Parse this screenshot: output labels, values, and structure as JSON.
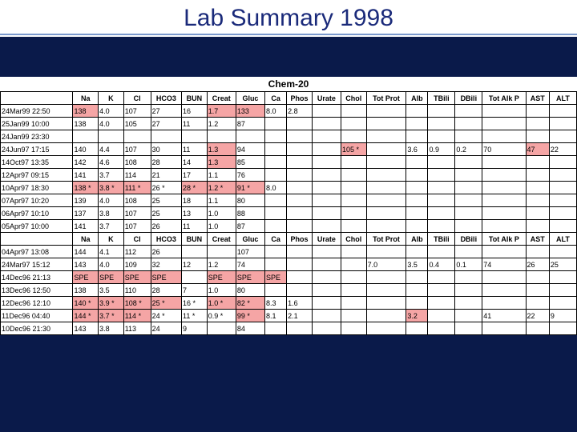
{
  "title": "Lab Summary 1998",
  "panel_label": "Chem-20",
  "columns": [
    "Na",
    "K",
    "Cl",
    "HCO3",
    "BUN",
    "Creat",
    "Gluc",
    "Ca",
    "Phos",
    "Urate",
    "Chol",
    "Tot Prot",
    "Alb",
    "TBili",
    "DBili",
    "Tot Alk P",
    "AST",
    "ALT"
  ],
  "col_widths": [
    "col-v",
    "col-v",
    "col-cl",
    "col-hco3",
    "col-bun",
    "col-creat",
    "col-gluc",
    "col-ca",
    "col-phos",
    "col-urate",
    "col-chol",
    "col-tp",
    "col-alb",
    "col-tbili",
    "col-dbili",
    "col-talk",
    "col-ast",
    "col-alt"
  ],
  "rows": [
    {
      "dt": "24Mar99 22:50",
      "v": [
        {
          "t": "138",
          "h": 1
        },
        {
          "t": "4.0"
        },
        {
          "t": "107"
        },
        {
          "t": "27"
        },
        {
          "t": "16"
        },
        {
          "t": "1.7",
          "h": 1
        },
        {
          "t": "133",
          "h": 1
        },
        {
          "t": "8.0"
        },
        {
          "t": "2.8"
        },
        {
          "t": ""
        },
        {
          "t": ""
        },
        {
          "t": ""
        },
        {
          "t": ""
        },
        {
          "t": ""
        },
        {
          "t": ""
        },
        {
          "t": ""
        },
        {
          "t": ""
        },
        {
          "t": ""
        }
      ]
    },
    {
      "dt": "25Jan99 10:00",
      "v": [
        {
          "t": "138"
        },
        {
          "t": "4.0"
        },
        {
          "t": "105"
        },
        {
          "t": "27"
        },
        {
          "t": "11"
        },
        {
          "t": "1.2"
        },
        {
          "t": "87"
        },
        {
          "t": ""
        },
        {
          "t": ""
        },
        {
          "t": ""
        },
        {
          "t": ""
        },
        {
          "t": ""
        },
        {
          "t": ""
        },
        {
          "t": ""
        },
        {
          "t": ""
        },
        {
          "t": ""
        },
        {
          "t": ""
        },
        {
          "t": ""
        }
      ]
    },
    {
      "dt": "24Jan99 23:30",
      "v": [
        {
          "t": ""
        },
        {
          "t": ""
        },
        {
          "t": ""
        },
        {
          "t": ""
        },
        {
          "t": ""
        },
        {
          "t": ""
        },
        {
          "t": ""
        },
        {
          "t": ""
        },
        {
          "t": ""
        },
        {
          "t": ""
        },
        {
          "t": ""
        },
        {
          "t": ""
        },
        {
          "t": ""
        },
        {
          "t": ""
        },
        {
          "t": ""
        },
        {
          "t": ""
        },
        {
          "t": ""
        },
        {
          "t": ""
        }
      ]
    },
    {
      "dt": "24Jun97 17:15",
      "v": [
        {
          "t": "140"
        },
        {
          "t": "4.4"
        },
        {
          "t": "107"
        },
        {
          "t": "30"
        },
        {
          "t": "11"
        },
        {
          "t": "1.3",
          "h": 1
        },
        {
          "t": "94"
        },
        {
          "t": ""
        },
        {
          "t": ""
        },
        {
          "t": ""
        },
        {
          "t": "105 *",
          "h": 1
        },
        {
          "t": ""
        },
        {
          "t": "3.6"
        },
        {
          "t": "0.9"
        },
        {
          "t": "0.2"
        },
        {
          "t": "70"
        },
        {
          "t": "47",
          "h": 1
        },
        {
          "t": "22"
        }
      ]
    },
    {
      "dt": "14Oct97 13:35",
      "v": [
        {
          "t": "142"
        },
        {
          "t": "4.6"
        },
        {
          "t": "108"
        },
        {
          "t": "28"
        },
        {
          "t": "14"
        },
        {
          "t": "1.3",
          "h": 1
        },
        {
          "t": "85"
        },
        {
          "t": ""
        },
        {
          "t": ""
        },
        {
          "t": ""
        },
        {
          "t": ""
        },
        {
          "t": ""
        },
        {
          "t": ""
        },
        {
          "t": ""
        },
        {
          "t": ""
        },
        {
          "t": ""
        },
        {
          "t": ""
        },
        {
          "t": ""
        }
      ]
    },
    {
      "dt": "12Apr97 09:15",
      "v": [
        {
          "t": "141"
        },
        {
          "t": "3.7"
        },
        {
          "t": "114"
        },
        {
          "t": "21"
        },
        {
          "t": "17"
        },
        {
          "t": "1.1"
        },
        {
          "t": "76"
        },
        {
          "t": ""
        },
        {
          "t": ""
        },
        {
          "t": ""
        },
        {
          "t": ""
        },
        {
          "t": ""
        },
        {
          "t": ""
        },
        {
          "t": ""
        },
        {
          "t": ""
        },
        {
          "t": ""
        },
        {
          "t": ""
        },
        {
          "t": ""
        }
      ]
    },
    {
      "dt": "10Apr97 18:30",
      "v": [
        {
          "t": "138 *",
          "h": 1
        },
        {
          "t": "3.8 *",
          "h": 1
        },
        {
          "t": "111 *",
          "h": 1
        },
        {
          "t": "26 *"
        },
        {
          "t": "28 *",
          "h": 1
        },
        {
          "t": "1.2 *",
          "h": 1
        },
        {
          "t": "91 *",
          "h": 1
        },
        {
          "t": "8.0"
        },
        {
          "t": ""
        },
        {
          "t": ""
        },
        {
          "t": ""
        },
        {
          "t": ""
        },
        {
          "t": ""
        },
        {
          "t": ""
        },
        {
          "t": ""
        },
        {
          "t": ""
        },
        {
          "t": ""
        },
        {
          "t": ""
        }
      ]
    },
    {
      "dt": "07Apr97 10:20",
      "v": [
        {
          "t": "139"
        },
        {
          "t": "4.0"
        },
        {
          "t": "108"
        },
        {
          "t": "25"
        },
        {
          "t": "18"
        },
        {
          "t": "1.1"
        },
        {
          "t": "80"
        },
        {
          "t": ""
        },
        {
          "t": ""
        },
        {
          "t": ""
        },
        {
          "t": ""
        },
        {
          "t": ""
        },
        {
          "t": ""
        },
        {
          "t": ""
        },
        {
          "t": ""
        },
        {
          "t": ""
        },
        {
          "t": ""
        },
        {
          "t": ""
        }
      ]
    },
    {
      "dt": "06Apr97 10:10",
      "v": [
        {
          "t": "137"
        },
        {
          "t": "3.8"
        },
        {
          "t": "107"
        },
        {
          "t": "25"
        },
        {
          "t": "13"
        },
        {
          "t": "1.0"
        },
        {
          "t": "88"
        },
        {
          "t": ""
        },
        {
          "t": ""
        },
        {
          "t": ""
        },
        {
          "t": ""
        },
        {
          "t": ""
        },
        {
          "t": ""
        },
        {
          "t": ""
        },
        {
          "t": ""
        },
        {
          "t": ""
        },
        {
          "t": ""
        },
        {
          "t": ""
        }
      ]
    },
    {
      "dt": "05Apr97 10:00",
      "v": [
        {
          "t": "141"
        },
        {
          "t": "3.7"
        },
        {
          "t": "107"
        },
        {
          "t": "26"
        },
        {
          "t": "11"
        },
        {
          "t": "1.0"
        },
        {
          "t": "87"
        },
        {
          "t": ""
        },
        {
          "t": ""
        },
        {
          "t": ""
        },
        {
          "t": ""
        },
        {
          "t": ""
        },
        {
          "t": ""
        },
        {
          "t": ""
        },
        {
          "t": ""
        },
        {
          "t": ""
        },
        {
          "t": ""
        },
        {
          "t": ""
        }
      ]
    },
    {
      "header": true
    },
    {
      "dt": "04Apr97 13:08",
      "v": [
        {
          "t": "144"
        },
        {
          "t": "4.1"
        },
        {
          "t": "112"
        },
        {
          "t": "26"
        },
        {
          "t": ""
        },
        {
          "t": ""
        },
        {
          "t": "107"
        },
        {
          "t": ""
        },
        {
          "t": ""
        },
        {
          "t": ""
        },
        {
          "t": ""
        },
        {
          "t": ""
        },
        {
          "t": ""
        },
        {
          "t": ""
        },
        {
          "t": ""
        },
        {
          "t": ""
        },
        {
          "t": ""
        },
        {
          "t": ""
        }
      ]
    },
    {
      "dt": "24Mar97 15:12",
      "v": [
        {
          "t": "143"
        },
        {
          "t": "4.0"
        },
        {
          "t": "109"
        },
        {
          "t": "32"
        },
        {
          "t": "12"
        },
        {
          "t": "1.2"
        },
        {
          "t": "74"
        },
        {
          "t": ""
        },
        {
          "t": ""
        },
        {
          "t": ""
        },
        {
          "t": ""
        },
        {
          "t": "7.0"
        },
        {
          "t": "3.5"
        },
        {
          "t": "0.4"
        },
        {
          "t": "0.1"
        },
        {
          "t": "74"
        },
        {
          "t": "26"
        },
        {
          "t": "25"
        }
      ]
    },
    {
      "dt": "14Dec96 21:13",
      "v": [
        {
          "t": "SPE",
          "h": 1
        },
        {
          "t": "SPE",
          "h": 1
        },
        {
          "t": "SPE",
          "h": 1
        },
        {
          "t": "SPE",
          "h": 1
        },
        {
          "t": ""
        },
        {
          "t": "SPE",
          "h": 1
        },
        {
          "t": "SPE",
          "h": 1
        },
        {
          "t": "SPE",
          "h": 1
        },
        {
          "t": ""
        },
        {
          "t": ""
        },
        {
          "t": ""
        },
        {
          "t": ""
        },
        {
          "t": ""
        },
        {
          "t": ""
        },
        {
          "t": ""
        },
        {
          "t": ""
        },
        {
          "t": ""
        },
        {
          "t": ""
        }
      ]
    },
    {
      "dt": "13Dec96 12:50",
      "v": [
        {
          "t": "138"
        },
        {
          "t": "3.5"
        },
        {
          "t": "110"
        },
        {
          "t": "28"
        },
        {
          "t": "7"
        },
        {
          "t": "1.0"
        },
        {
          "t": "80"
        },
        {
          "t": ""
        },
        {
          "t": ""
        },
        {
          "t": ""
        },
        {
          "t": ""
        },
        {
          "t": ""
        },
        {
          "t": ""
        },
        {
          "t": ""
        },
        {
          "t": ""
        },
        {
          "t": ""
        },
        {
          "t": ""
        },
        {
          "t": ""
        }
      ]
    },
    {
      "dt": "12Dec96 12:10",
      "v": [
        {
          "t": "140 *",
          "h": 1
        },
        {
          "t": "3.9 *",
          "h": 1
        },
        {
          "t": "108 *",
          "h": 1
        },
        {
          "t": "25 *",
          "h": 1
        },
        {
          "t": "16 *"
        },
        {
          "t": "1.0 *",
          "h": 1
        },
        {
          "t": "82 *",
          "h": 1
        },
        {
          "t": "8.3"
        },
        {
          "t": "1.6"
        },
        {
          "t": ""
        },
        {
          "t": ""
        },
        {
          "t": ""
        },
        {
          "t": ""
        },
        {
          "t": ""
        },
        {
          "t": ""
        },
        {
          "t": ""
        },
        {
          "t": ""
        },
        {
          "t": ""
        }
      ]
    },
    {
      "dt": "11Dec96 04:40",
      "v": [
        {
          "t": "144 *",
          "h": 1
        },
        {
          "t": "3.7 *",
          "h": 1
        },
        {
          "t": "114 *",
          "h": 1
        },
        {
          "t": "24 *"
        },
        {
          "t": "11 *"
        },
        {
          "t": "0.9 *"
        },
        {
          "t": "99 *",
          "h": 1
        },
        {
          "t": "8.1"
        },
        {
          "t": "2.1"
        },
        {
          "t": ""
        },
        {
          "t": ""
        },
        {
          "t": ""
        },
        {
          "t": "3.2",
          "h": 1
        },
        {
          "t": ""
        },
        {
          "t": ""
        },
        {
          "t": "41"
        },
        {
          "t": "22"
        },
        {
          "t": "9"
        }
      ]
    },
    {
      "dt": "10Dec96 21:30",
      "v": [
        {
          "t": "143"
        },
        {
          "t": "3.8"
        },
        {
          "t": "113"
        },
        {
          "t": "24"
        },
        {
          "t": "9"
        },
        {
          "t": ""
        },
        {
          "t": "84"
        },
        {
          "t": ""
        },
        {
          "t": ""
        },
        {
          "t": ""
        },
        {
          "t": ""
        },
        {
          "t": ""
        },
        {
          "t": ""
        },
        {
          "t": ""
        },
        {
          "t": ""
        },
        {
          "t": ""
        },
        {
          "t": ""
        },
        {
          "t": ""
        }
      ]
    }
  ],
  "colors": {
    "background": "#0a1a4a",
    "title_color": "#1a2a7a",
    "highlight": "#f5a5a5",
    "border": "#000000",
    "divider": "#7a99cc"
  }
}
